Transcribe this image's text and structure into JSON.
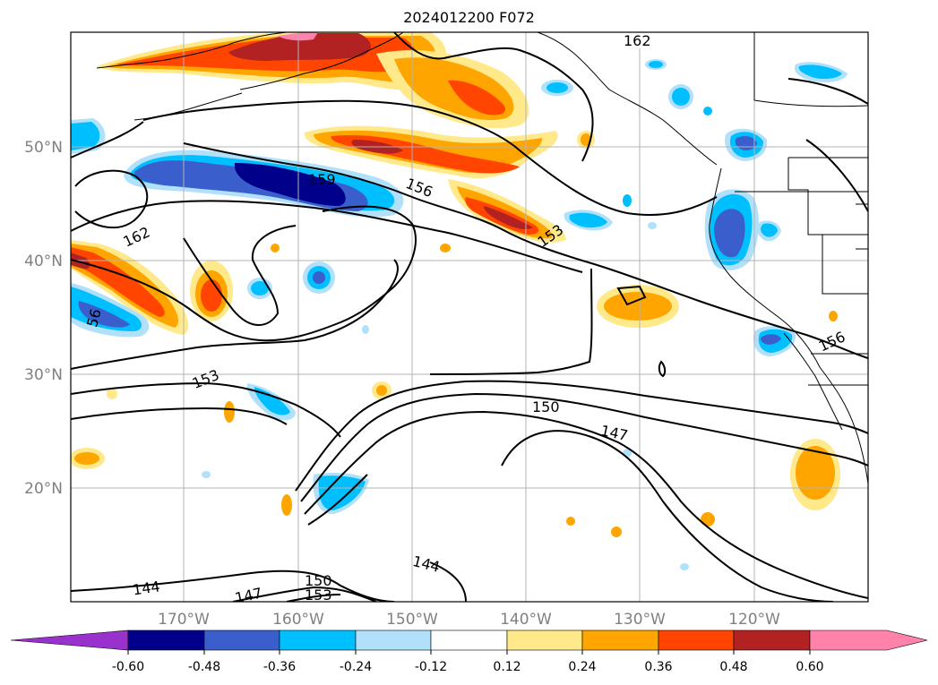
{
  "title": "2024012200 F072",
  "map": {
    "lat_labels": [
      "50°N",
      "40°N",
      "30°N",
      "20°N"
    ],
    "lon_labels": [
      "170°W",
      "160°W",
      "150°W",
      "140°W",
      "130°W",
      "120°W"
    ],
    "contour_labels": [
      "162",
      "159",
      "156",
      "153",
      "162",
      "56",
      "153",
      "150",
      "147",
      "144",
      "144",
      "147",
      "150",
      "153",
      "156"
    ],
    "colors": {
      "neg060": "#9932cc",
      "neg048": "#00008b",
      "neg036": "#3a5fcd",
      "neg024": "#00bfff",
      "neg012": "#b0e0fa",
      "pos012": "#ffe98a",
      "pos024": "#ffa500",
      "pos036": "#ff4500",
      "pos048": "#b22222",
      "pos060": "#ff82ab"
    }
  },
  "colorbar": {
    "ticks": [
      "-0.60",
      "-0.48",
      "-0.36",
      "-0.24",
      "-0.12",
      "0.12",
      "0.24",
      "0.36",
      "0.48",
      "0.60"
    ]
  }
}
